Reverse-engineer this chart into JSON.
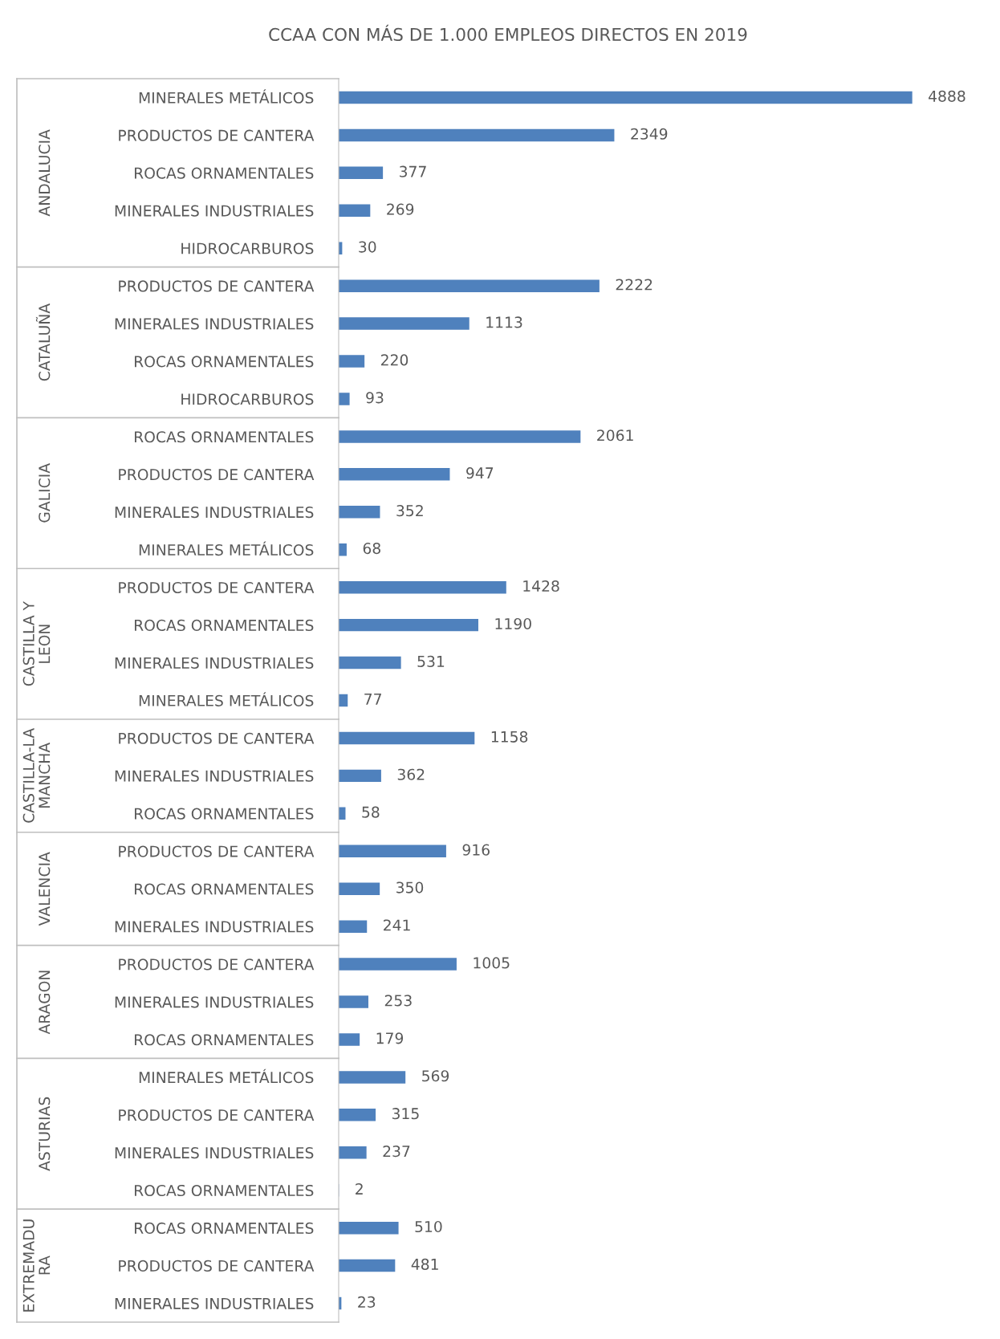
{
  "chart_data": [
    {
      "type": "bar",
      "orientation": "horizontal",
      "title": "CCAA CON MÁS DE 1.000 EMPLEOS DIRECTOS EN 2019",
      "ylabel": "ANDALUCIA",
      "categories": [
        "MINERALES METÁLICOS",
        "PRODUCTOS DE CANTERA",
        "ROCAS ORNAMENTALES",
        "MINERALES INDUSTRIALES",
        "HIDROCARBUROS"
      ],
      "values": [
        4888,
        2349,
        377,
        269,
        30
      ],
      "color": "#4f81bd",
      "data_labels": true,
      "tick_labels": "y",
      "grid": false,
      "legend": false
    },
    {
      "type": "bar",
      "orientation": "horizontal",
      "ylabel": "CATALUÑA",
      "categories": [
        "PRODUCTOS DE CANTERA",
        "MINERALES INDUSTRIALES",
        "ROCAS ORNAMENTALES",
        "HIDROCARBUROS"
      ],
      "values": [
        2222,
        1113,
        220,
        93
      ],
      "color": "#4f81bd",
      "data_labels": true,
      "tick_labels": "y",
      "grid": false,
      "legend": false
    },
    {
      "type": "bar",
      "orientation": "horizontal",
      "ylabel": "GALICIA",
      "categories": [
        "ROCAS ORNAMENTALES",
        "PRODUCTOS DE CANTERA",
        "MINERALES INDUSTRIALES",
        "MINERALES METÁLICOS"
      ],
      "values": [
        2061,
        947,
        352,
        68
      ],
      "color": "#4f81bd",
      "data_labels": true,
      "tick_labels": "y",
      "grid": false,
      "legend": false
    },
    {
      "type": "bar",
      "orientation": "horizontal",
      "ylabel": "CASTILLA Y\nLEON",
      "categories": [
        "PRODUCTOS DE CANTERA",
        "ROCAS ORNAMENTALES",
        "MINERALES INDUSTRIALES",
        "MINERALES METÁLICOS"
      ],
      "values": [
        1428,
        1190,
        531,
        77
      ],
      "color": "#4f81bd",
      "data_labels": true,
      "tick_labels": "y",
      "grid": false,
      "legend": false
    },
    {
      "type": "bar",
      "orientation": "horizontal",
      "ylabel": "CASTILLA-LA\nMANCHA",
      "categories": [
        "PRODUCTOS DE CANTERA",
        "MINERALES INDUSTRIALES",
        "ROCAS ORNAMENTALES"
      ],
      "values": [
        1158,
        362,
        58
      ],
      "color": "#4f81bd",
      "data_labels": true,
      "tick_labels": "y",
      "grid": false,
      "legend": false
    },
    {
      "type": "bar",
      "orientation": "horizontal",
      "ylabel": "VALENCIA",
      "categories": [
        "PRODUCTOS DE CANTERA",
        "ROCAS ORNAMENTALES",
        "MINERALES INDUSTRIALES"
      ],
      "values": [
        916,
        350,
        241
      ],
      "color": "#4f81bd",
      "data_labels": true,
      "tick_labels": "y",
      "grid": false,
      "legend": false
    },
    {
      "type": "bar",
      "orientation": "horizontal",
      "ylabel": "ARAGON",
      "categories": [
        "PRODUCTOS DE CANTERA",
        "MINERALES INDUSTRIALES",
        "ROCAS ORNAMENTALES"
      ],
      "values": [
        1005,
        253,
        179
      ],
      "color": "#4f81bd",
      "data_labels": true,
      "tick_labels": "y",
      "grid": false,
      "legend": false
    },
    {
      "type": "bar",
      "orientation": "horizontal",
      "ylabel": "ASTURIAS",
      "categories": [
        "MINERALES METÁLICOS",
        "PRODUCTOS DE CANTERA",
        "MINERALES INDUSTRIALES",
        "ROCAS ORNAMENTALES"
      ],
      "values": [
        569,
        315,
        237,
        2
      ],
      "color": "#4f81bd",
      "data_labels": true,
      "tick_labels": "y",
      "grid": false,
      "legend": false
    },
    {
      "type": "bar",
      "orientation": "horizontal",
      "ylabel": "EXTREMADU\nRA",
      "categories": [
        "ROCAS ORNAMENTALES",
        "PRODUCTOS DE CANTERA",
        "MINERALES INDUSTRIALES"
      ],
      "values": [
        510,
        481,
        23
      ],
      "color": "#4f81bd",
      "data_labels": true,
      "tick_labels": "y",
      "grid": false,
      "legend": false
    }
  ]
}
